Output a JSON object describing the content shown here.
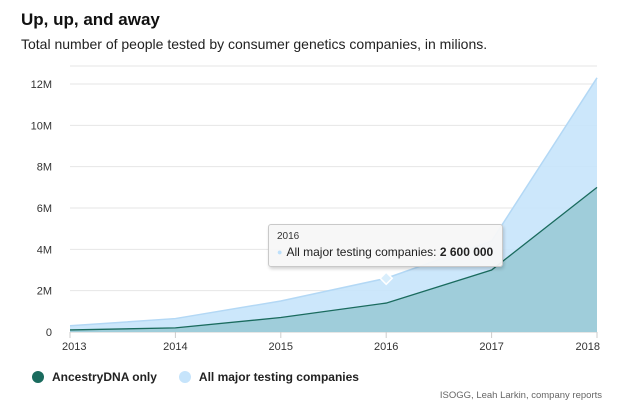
{
  "header": {
    "title": "Up, up, and away",
    "subtitle": "Total number of people tested by consumer genetics companies, in milions."
  },
  "source": "ISOGG, Leah Larkin, company reports",
  "tooltip": {
    "year": "2016",
    "series": "All major testing companies: ",
    "value": "2 600 000"
  },
  "colors": {
    "ancestry": "#1a6b5e",
    "ancestry_fill": "#9ccbd8",
    "all_fill": "#c6e4fb",
    "all_line": "#b3d8f5",
    "grid": "#e6e6e6",
    "axis": "#cccccc"
  },
  "chart_data": {
    "type": "area",
    "title": "Up, up, and away",
    "x": [
      2013,
      2014,
      2015,
      2016,
      2017,
      2018
    ],
    "y_ticks": [
      "0",
      "2M",
      "4M",
      "6M",
      "8M",
      "10M",
      "12M"
    ],
    "ylim": [
      0,
      12000000
    ],
    "grid": true,
    "legend_position": "bottom-left",
    "series": [
      {
        "name": "AncestryDNA only",
        "values": [
          100000,
          200000,
          700000,
          1400000,
          3000000,
          7000000
        ]
      },
      {
        "name": "All major testing companies",
        "values": [
          300000,
          650000,
          1500000,
          2600000,
          4400000,
          12300000
        ]
      }
    ]
  }
}
